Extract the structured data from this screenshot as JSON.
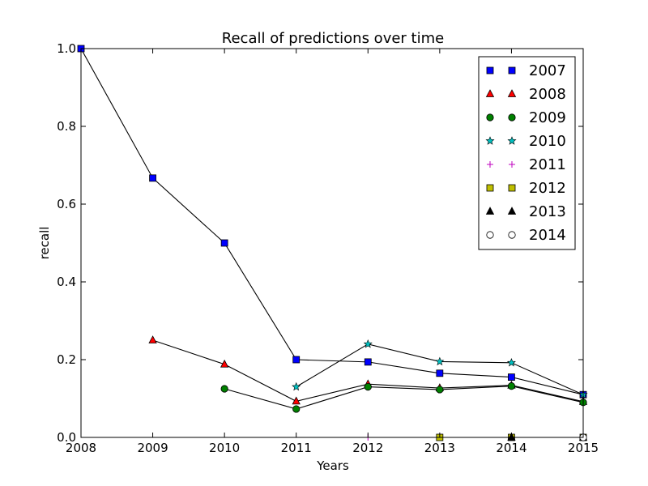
{
  "chart_data": {
    "type": "line",
    "title": "Recall of predictions over time",
    "xlabel": "Years",
    "ylabel": "recall",
    "xlim": [
      2008,
      2015
    ],
    "ylim": [
      0.0,
      1.0
    ],
    "x_ticks": [
      "2008",
      "2009",
      "2010",
      "2011",
      "2012",
      "2013",
      "2014",
      "2015"
    ],
    "y_ticks": [
      "0.0",
      "0.2",
      "0.4",
      "0.6",
      "0.8",
      "1.0"
    ],
    "grid": false,
    "legend_position": "top-right",
    "series": [
      {
        "name": "2007",
        "marker": "square",
        "color": "#0000ff",
        "x": [
          2008,
          2009,
          2010,
          2011,
          2012,
          2013,
          2014,
          2015
        ],
        "y": [
          1.0,
          0.667,
          0.5,
          0.2,
          0.194,
          0.165,
          0.155,
          0.11
        ]
      },
      {
        "name": "2008",
        "marker": "triangle",
        "color": "#ff0000",
        "x": [
          2009,
          2010,
          2011,
          2012,
          2013,
          2014,
          2015
        ],
        "y": [
          0.25,
          0.188,
          0.093,
          0.137,
          0.127,
          0.134,
          0.092
        ]
      },
      {
        "name": "2009",
        "marker": "circle",
        "color": "#008000",
        "x": [
          2010,
          2011,
          2012,
          2013,
          2014,
          2015
        ],
        "y": [
          0.125,
          0.073,
          0.13,
          0.123,
          0.132,
          0.09
        ]
      },
      {
        "name": "2010",
        "marker": "star",
        "color": "#00bfbf",
        "x": [
          2011,
          2012,
          2013,
          2014,
          2015
        ],
        "y": [
          0.13,
          0.24,
          0.195,
          0.192,
          0.11
        ]
      },
      {
        "name": "2011",
        "marker": "plus",
        "color": "#bf00bf",
        "x": [
          2012,
          2013,
          2014,
          2015
        ],
        "y": [
          0.0,
          0.0,
          0.0,
          0.0
        ]
      },
      {
        "name": "2012",
        "marker": "square",
        "color": "#bfbf00",
        "x": [
          2013,
          2014,
          2015
        ],
        "y": [
          0.0,
          0.0,
          0.0
        ]
      },
      {
        "name": "2013",
        "marker": "triangle",
        "color": "#000000",
        "x": [
          2014,
          2015
        ],
        "y": [
          0.0,
          0.0
        ]
      },
      {
        "name": "2014",
        "marker": "circle-open",
        "color": "#ffffff",
        "x": [
          2015
        ],
        "y": [
          0.0
        ]
      }
    ]
  }
}
